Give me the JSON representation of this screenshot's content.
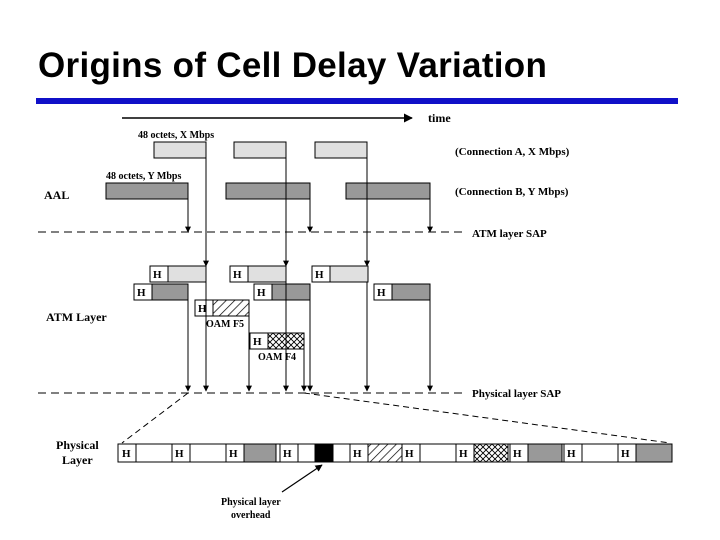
{
  "title": "Origins of Cell Delay Variation",
  "colors": {
    "title_rule": "#1010c8",
    "light_cell": "#e0e0e0",
    "dark_cell": "#999999",
    "overhead": "#000000"
  },
  "time_label": "time",
  "conn_a": {
    "size_label": "48 octets, X Mbps",
    "label": "(Connection A, X Mbps)"
  },
  "conn_b": {
    "size_label": "48 octets, Y Mbps",
    "label": "(Connection B, Y Mbps)"
  },
  "layers": {
    "aal": "AAL",
    "atm": "ATM Layer",
    "physical_line1": "Physical",
    "physical_line2": "Layer"
  },
  "saps": {
    "atm": "ATM layer SAP",
    "physical": "Physical layer SAP"
  },
  "header_label": "H",
  "oam": {
    "f5": "OAM F5",
    "f4": "OAM F4"
  },
  "overhead": {
    "line1": "Physical layer",
    "line2": "overhead"
  }
}
